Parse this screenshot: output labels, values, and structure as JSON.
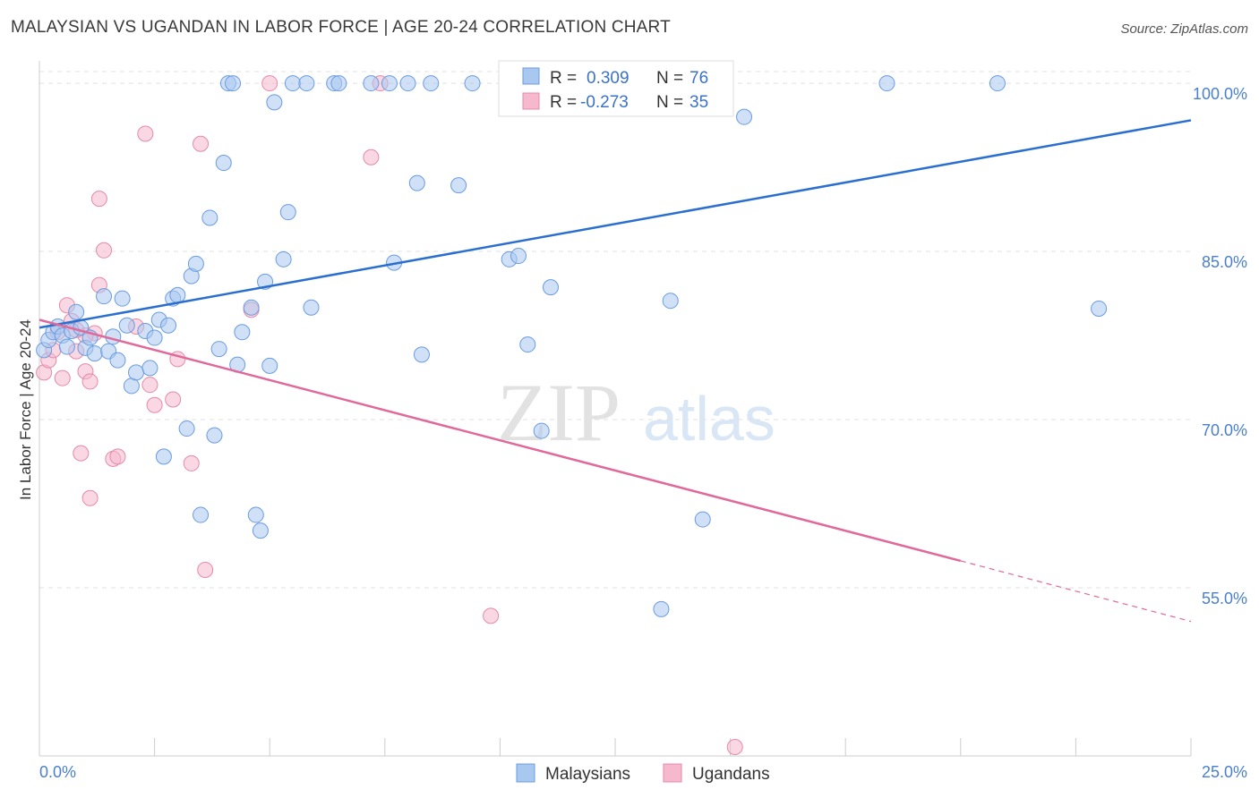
{
  "header": {
    "title": "MALAYSIAN VS UGANDAN IN LABOR FORCE | AGE 20-24 CORRELATION CHART",
    "source": "Source: ZipAtlas.com"
  },
  "watermark": {
    "zip": "ZIP",
    "atlas": "atlas"
  },
  "legend": {
    "r_label": "R =",
    "n_label": "N =",
    "rows": [
      {
        "name": "Malaysians",
        "r": "0.309",
        "n": "76",
        "color": "#a9c8f0"
      },
      {
        "name": "Ugandans",
        "r": "-0.273",
        "n": "35",
        "color": "#f6b8cc"
      }
    ]
  },
  "chart_data": {
    "type": "scatter",
    "title": "MALAYSIAN VS UGANDAN IN LABOR FORCE | AGE 20-24 CORRELATION CHART",
    "xlabel": "",
    "ylabel": "In Labor Force | Age 20-24",
    "xlim": [
      0,
      25
    ],
    "ylim": [
      40,
      102
    ],
    "x_tick_labels": [
      "0.0%",
      "25.0%"
    ],
    "y_ticks": [
      55,
      70,
      85,
      100
    ],
    "y_tick_labels": [
      "55.0%",
      "70.0%",
      "85.0%",
      "100.0%"
    ],
    "series": [
      {
        "name": "Malaysians",
        "color": "#a9c8f0",
        "stroke": "#6a9be0",
        "trend": {
          "x": [
            0,
            25
          ],
          "y": [
            78.2,
            96.7
          ]
        },
        "points": [
          [
            0.1,
            76.2
          ],
          [
            0.2,
            77.1
          ],
          [
            0.3,
            77.8
          ],
          [
            0.4,
            78.3
          ],
          [
            0.5,
            77.5
          ],
          [
            0.6,
            76.5
          ],
          [
            0.7,
            77.9
          ],
          [
            0.8,
            79.6
          ],
          [
            0.9,
            78.2
          ],
          [
            1.0,
            76.4
          ],
          [
            1.1,
            77.3
          ],
          [
            1.2,
            75.9
          ],
          [
            1.4,
            81.0
          ],
          [
            1.5,
            76.1
          ],
          [
            1.6,
            77.4
          ],
          [
            1.7,
            75.3
          ],
          [
            1.8,
            80.8
          ],
          [
            1.9,
            78.4
          ],
          [
            2.0,
            73.0
          ],
          [
            2.1,
            74.2
          ],
          [
            2.3,
            77.9
          ],
          [
            2.4,
            74.6
          ],
          [
            2.5,
            77.3
          ],
          [
            2.6,
            78.9
          ],
          [
            2.7,
            66.7
          ],
          [
            2.8,
            78.4
          ],
          [
            2.9,
            80.8
          ],
          [
            3.0,
            81.1
          ],
          [
            3.2,
            69.2
          ],
          [
            3.3,
            82.8
          ],
          [
            3.4,
            83.9
          ],
          [
            3.5,
            61.5
          ],
          [
            3.7,
            88.0
          ],
          [
            3.8,
            68.6
          ],
          [
            3.9,
            76.3
          ],
          [
            4.0,
            92.9
          ],
          [
            4.1,
            100.0
          ],
          [
            4.2,
            100.0
          ],
          [
            4.3,
            74.9
          ],
          [
            4.4,
            77.8
          ],
          [
            4.6,
            80.0
          ],
          [
            4.7,
            61.5
          ],
          [
            4.8,
            60.1
          ],
          [
            4.9,
            82.3
          ],
          [
            5.0,
            74.8
          ],
          [
            5.1,
            98.3
          ],
          [
            5.3,
            84.3
          ],
          [
            5.4,
            88.5
          ],
          [
            5.5,
            100.0
          ],
          [
            5.8,
            100.0
          ],
          [
            5.9,
            80.0
          ],
          [
            6.4,
            100.0
          ],
          [
            6.5,
            100.0
          ],
          [
            7.2,
            100.0
          ],
          [
            7.6,
            100.0
          ],
          [
            7.7,
            84.0
          ],
          [
            8.0,
            100.0
          ],
          [
            8.2,
            91.1
          ],
          [
            8.3,
            75.8
          ],
          [
            8.5,
            100.0
          ],
          [
            9.1,
            90.9
          ],
          [
            9.4,
            100.0
          ],
          [
            10.2,
            84.3
          ],
          [
            10.6,
            76.7
          ],
          [
            10.9,
            69.0
          ],
          [
            11.1,
            81.8
          ],
          [
            11.6,
            100.0
          ],
          [
            12.4,
            100.0
          ],
          [
            13.5,
            53.1
          ],
          [
            13.7,
            80.6
          ],
          [
            14.4,
            61.1
          ],
          [
            15.3,
            97.0
          ],
          [
            18.4,
            100.0
          ],
          [
            20.8,
            100.0
          ],
          [
            23.0,
            79.9
          ],
          [
            10.4,
            84.6
          ]
        ]
      },
      {
        "name": "Ugandans",
        "color": "#f6b8cc",
        "stroke": "#e48aa8",
        "trend": {
          "x": [
            0,
            20
          ],
          "y": [
            78.9,
            57.4
          ],
          "dashed_to": {
            "x": 25,
            "y": 52.0
          }
        },
        "points": [
          [
            0.1,
            74.2
          ],
          [
            0.2,
            75.3
          ],
          [
            0.3,
            76.2
          ],
          [
            0.4,
            77.8
          ],
          [
            0.5,
            73.7
          ],
          [
            0.6,
            80.2
          ],
          [
            0.7,
            78.8
          ],
          [
            0.8,
            76.1
          ],
          [
            0.9,
            67.0
          ],
          [
            1.0,
            74.3
          ],
          [
            1.1,
            73.4
          ],
          [
            1.1,
            63.0
          ],
          [
            1.2,
            77.7
          ],
          [
            1.3,
            82.0
          ],
          [
            1.3,
            89.7
          ],
          [
            1.4,
            85.1
          ],
          [
            1.6,
            66.5
          ],
          [
            1.7,
            66.7
          ],
          [
            2.1,
            78.3
          ],
          [
            2.3,
            95.5
          ],
          [
            2.4,
            73.1
          ],
          [
            2.5,
            71.3
          ],
          [
            2.9,
            71.8
          ],
          [
            3.0,
            75.4
          ],
          [
            3.3,
            66.1
          ],
          [
            3.5,
            94.6
          ],
          [
            3.6,
            56.6
          ],
          [
            4.6,
            79.8
          ],
          [
            5.0,
            100.0
          ],
          [
            7.2,
            93.4
          ],
          [
            7.4,
            100.0
          ],
          [
            9.8,
            52.5
          ],
          [
            15.1,
            40.8
          ],
          [
            1.0,
            77.5
          ],
          [
            0.8,
            78.0
          ]
        ]
      }
    ],
    "legend_position": "top-center"
  }
}
